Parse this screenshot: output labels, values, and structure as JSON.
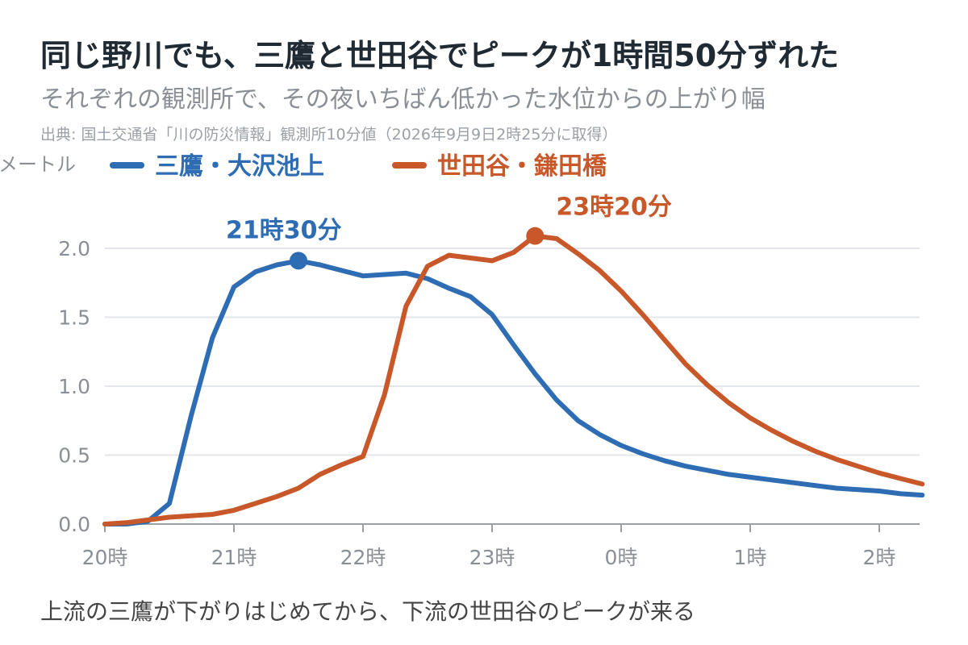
{
  "title": "同じ野川でも、三鷹と世田谷でピークが1時間50分ずれた",
  "subtitle": "それぞれの観測所で、その夜いちばん低かった水位からの上がり幅",
  "source": "出典: 国土交通省「川の防災情報」観測所10分値（2026年9月9日2時25分に取得）",
  "caption": "上流の三鷹が下がりはじめてから、下流の世田谷のピークが来る",
  "chart_data": {
    "type": "line",
    "ylabel": "メートル",
    "ylim": [
      0,
      2.0
    ],
    "y_ticks": [
      "0.0",
      "0.5",
      "1.0",
      "1.5",
      "2.0"
    ],
    "y_tick_values": [
      0,
      0.5,
      1.0,
      1.5,
      2.0
    ],
    "x_ticks": [
      "20時",
      "21時",
      "22時",
      "23時",
      "0時",
      "1時",
      "2時"
    ],
    "x_tick_values": [
      "20:00",
      "21:00",
      "22:00",
      "23:00",
      "24:00",
      "25:00",
      "26:00"
    ],
    "xlim": [
      "20:00",
      "26:20"
    ],
    "grid": true,
    "legend_position": "top-left",
    "series": [
      {
        "name": "三鷹・大沢池上",
        "color": "#2e6db4",
        "x": [
          "20:00",
          "20:10",
          "20:20",
          "20:30",
          "20:40",
          "20:50",
          "21:00",
          "21:10",
          "21:20",
          "21:30",
          "21:40",
          "21:50",
          "22:00",
          "22:10",
          "22:20",
          "22:30",
          "22:40",
          "22:50",
          "23:00",
          "23:10",
          "23:20",
          "23:30",
          "23:40",
          "23:50",
          "24:00",
          "24:10",
          "24:20",
          "24:30",
          "24:40",
          "24:50",
          "25:00",
          "25:10",
          "25:20",
          "25:30",
          "25:40",
          "25:50",
          "26:00",
          "26:10",
          "26:20"
        ],
        "values": [
          0.0,
          0.0,
          0.02,
          0.15,
          0.78,
          1.35,
          1.72,
          1.83,
          1.88,
          1.91,
          1.88,
          1.84,
          1.8,
          1.81,
          1.82,
          1.78,
          1.71,
          1.65,
          1.52,
          1.3,
          1.09,
          0.9,
          0.75,
          0.65,
          0.57,
          0.51,
          0.46,
          0.42,
          0.39,
          0.36,
          0.34,
          0.32,
          0.3,
          0.28,
          0.26,
          0.25,
          0.24,
          0.22,
          0.21
        ],
        "peak": {
          "x": "21:30",
          "y": 1.91,
          "label": "21時30分"
        }
      },
      {
        "name": "世田谷・鎌田橋",
        "color": "#c8582a",
        "x": [
          "20:00",
          "20:10",
          "20:20",
          "20:30",
          "20:40",
          "20:50",
          "21:00",
          "21:10",
          "21:20",
          "21:30",
          "21:40",
          "21:50",
          "22:00",
          "22:10",
          "22:20",
          "22:30",
          "22:40",
          "22:50",
          "23:00",
          "23:10",
          "23:20",
          "23:30",
          "23:40",
          "23:50",
          "24:00",
          "24:10",
          "24:20",
          "24:30",
          "24:40",
          "24:50",
          "25:00",
          "25:10",
          "25:20",
          "25:30",
          "25:40",
          "25:50",
          "26:00",
          "26:10",
          "26:20"
        ],
        "values": [
          0.0,
          0.01,
          0.03,
          0.05,
          0.06,
          0.07,
          0.1,
          0.15,
          0.2,
          0.26,
          0.36,
          0.43,
          0.49,
          0.94,
          1.58,
          1.87,
          1.95,
          1.93,
          1.91,
          1.97,
          2.09,
          2.07,
          1.96,
          1.84,
          1.69,
          1.52,
          1.34,
          1.16,
          1.01,
          0.88,
          0.77,
          0.68,
          0.6,
          0.53,
          0.47,
          0.42,
          0.37,
          0.33,
          0.29
        ],
        "peak": {
          "x": "23:20",
          "y": 2.09,
          "label": "23時20分"
        }
      }
    ]
  }
}
